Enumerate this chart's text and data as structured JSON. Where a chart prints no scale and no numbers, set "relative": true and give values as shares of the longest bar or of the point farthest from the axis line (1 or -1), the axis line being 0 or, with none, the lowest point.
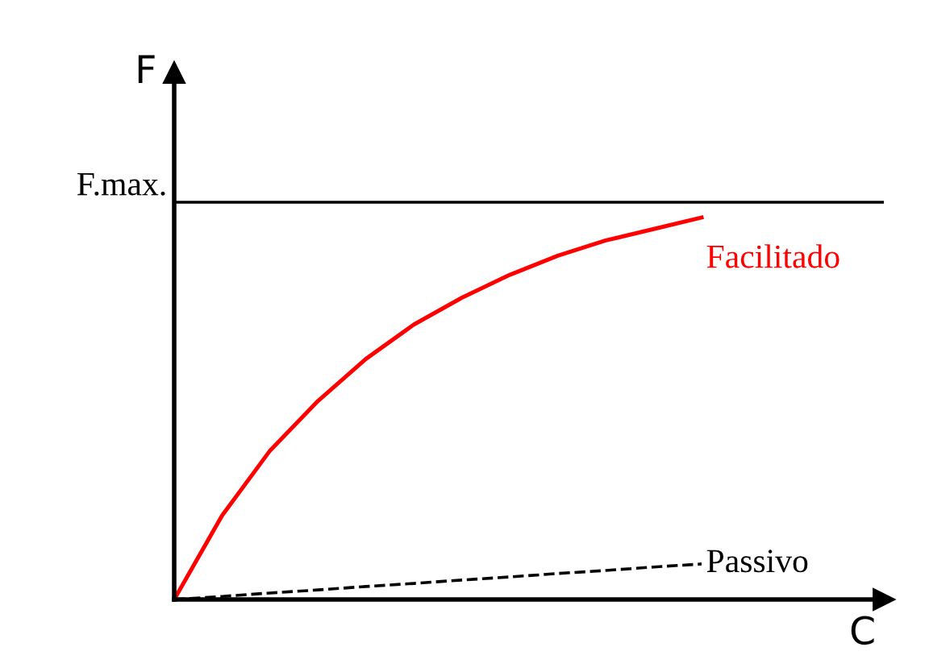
{
  "chart_data": {
    "type": "line",
    "relative": true,
    "xlabel": "C",
    "ylabel": "F",
    "categories": [
      null,
      null,
      null,
      null,
      null,
      null,
      null,
      null,
      null,
      null,
      null,
      null
    ],
    "series": [
      {
        "name": "Facilitado",
        "color": "#ff0000",
        "line_style": "solid",
        "values": [
          0,
          0.22,
          0.39,
          0.52,
          0.63,
          0.72,
          0.79,
          0.85,
          0.9,
          0.94,
          0.97,
          1.0
        ]
      },
      {
        "name": "Passivo",
        "color": "#000000",
        "line_style": "dashed",
        "values": [
          0,
          0.008,
          0.017,
          0.025,
          0.034,
          0.042,
          0.051,
          0.059,
          0.068,
          0.076,
          0.085,
          0.093
        ]
      }
    ],
    "ref_lines": [
      {
        "axis": "y",
        "value": 1.04,
        "label": "F.max.",
        "color": "#000000",
        "line_style": "solid"
      }
    ],
    "marker": "none"
  }
}
